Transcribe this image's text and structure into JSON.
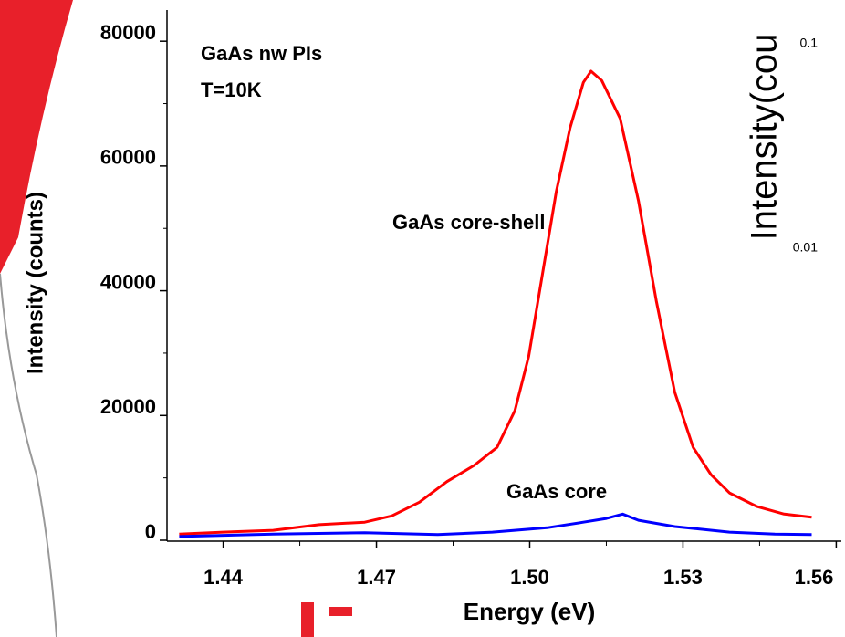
{
  "chart_data": {
    "type": "line",
    "x_label": "Energy (eV)",
    "y_label": "Intensity (counts)",
    "annotations": [
      "GaAs nw PIs",
      "T=10K",
      "GaAs core-shell",
      "GaAs core"
    ],
    "xlim": [
      1.429,
      1.561
    ],
    "ylim": [
      0,
      85000
    ],
    "xticks": [
      1.44,
      1.47,
      {
        "value": 1.5,
        "label": "1.50"
      },
      1.53,
      1.56
    ],
    "yticks": [
      0,
      20000,
      40000,
      60000,
      80000
    ],
    "series": [
      {
        "name": "GaAs core-shell",
        "color": "#ff0000",
        "x": [
          1.4314,
          1.44,
          1.4498,
          1.4588,
          1.4677,
          1.473,
          1.4784,
          1.4838,
          1.4891,
          1.4936,
          1.4971,
          1.4998,
          1.5025,
          1.5052,
          1.5079,
          1.5105,
          1.512,
          1.5141,
          1.5177,
          1.5213,
          1.5248,
          1.5284,
          1.532,
          1.5355,
          1.5391,
          1.5445,
          1.5498,
          1.5552
        ],
        "values": [
          1000,
          1300,
          1600,
          2500,
          2900,
          3900,
          6100,
          9400,
          12000,
          14900,
          20800,
          29500,
          42700,
          55900,
          66100,
          73400,
          75200,
          73700,
          67600,
          54400,
          38300,
          23700,
          14900,
          10500,
          7600,
          5400,
          4200,
          3700
        ]
      },
      {
        "name": "GaAs core",
        "color": "#0000ff",
        "x": [
          1.4314,
          1.4498,
          1.4677,
          1.482,
          1.4927,
          1.5034,
          1.5105,
          1.515,
          1.5182,
          1.5213,
          1.5284,
          1.5391,
          1.548,
          1.5552
        ],
        "values": [
          600,
          1000,
          1200,
          900,
          1300,
          2000,
          2900,
          3500,
          4200,
          3200,
          2200,
          1300,
          1000,
          900
        ]
      }
    ]
  },
  "background_chart": {
    "y_label": "Intensity(cou",
    "yticks": [
      "0.1",
      "0.01"
    ]
  }
}
